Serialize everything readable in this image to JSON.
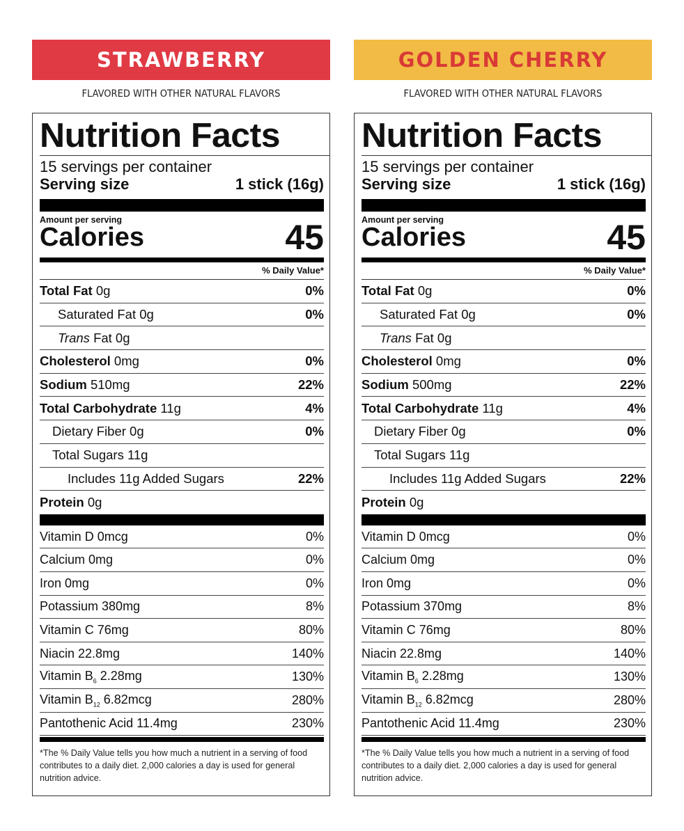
{
  "panels": [
    {
      "flavor": "STRAWBERRY",
      "banner_bg": "#e03a45",
      "banner_fg": "#ffffff",
      "subtitle": "FLAVORED WITH OTHER NATURAL FLAVORS",
      "title": "Nutrition Facts",
      "servings": "15 servings per container",
      "serving_size_label": "Serving size",
      "serving_size_value": "1 stick (16g)",
      "amount_per_serving": "Amount per serving",
      "calories_label": "Calories",
      "calories_value": "45",
      "dv_header": "% Daily Value*",
      "total_fat": {
        "label": "Total Fat",
        "amount": "0g",
        "dv": "0%"
      },
      "saturated_fat": {
        "label": "Saturated Fat 0g",
        "dv": "0%"
      },
      "trans_fat": {
        "label_italic": "Trans",
        "label_rest": "Fat 0g"
      },
      "cholesterol": {
        "label": "Cholesterol",
        "amount": "0mg",
        "dv": "0%"
      },
      "sodium": {
        "label": "Sodium",
        "amount": "510mg",
        "dv": "22%"
      },
      "total_carb": {
        "label": "Total Carbohydrate",
        "amount": "11g",
        "dv": "4%"
      },
      "dietary_fiber": {
        "label": "Dietary Fiber 0g",
        "dv": "0%"
      },
      "total_sugars": {
        "label": "Total Sugars 11g"
      },
      "added_sugars": {
        "label": "Includes 11g Added Sugars",
        "dv": "22%"
      },
      "protein": {
        "label": "Protein",
        "amount": "0g"
      },
      "vitamins": {
        "vit_d": {
          "label": "Vitamin D 0mcg",
          "dv": "0%"
        },
        "calcium": {
          "label": "Calcium 0mg",
          "dv": "0%"
        },
        "iron": {
          "label": "Iron 0mg",
          "dv": "0%"
        },
        "potassium": {
          "label": "Potassium 380mg",
          "dv": "8%"
        },
        "vit_c": {
          "label": "Vitamin C 76mg",
          "dv": "80%"
        },
        "niacin": {
          "label": "Niacin 22.8mg",
          "dv": "140%"
        },
        "vit_b6": {
          "prefix": "Vitamin B",
          "sub": "6",
          "amount": "2.28mg",
          "dv": "130%"
        },
        "vit_b12": {
          "prefix": "Vitamin B",
          "sub": "12",
          "amount": "6.82mcg",
          "dv": "280%"
        },
        "pantothenic": {
          "label": "Pantothenic Acid 11.4mg",
          "dv": "230%"
        }
      },
      "footnote": "*The % Daily Value tells you how much a nutrient in a serving of food contributes to a daily diet. 2,000 calories a day is used for general nutrition advice."
    },
    {
      "flavor": "GOLDEN CHERRY",
      "banner_bg": "#f2bb45",
      "banner_fg": "#d93a36",
      "subtitle": "FLAVORED WITH OTHER NATURAL FLAVORS",
      "title": "Nutrition Facts",
      "servings": "15 servings per container",
      "serving_size_label": "Serving size",
      "serving_size_value": "1 stick (16g)",
      "amount_per_serving": "Amount per serving",
      "calories_label": "Calories",
      "calories_value": "45",
      "dv_header": "% Daily Value*",
      "total_fat": {
        "label": "Total Fat",
        "amount": "0g",
        "dv": "0%"
      },
      "saturated_fat": {
        "label": "Saturated Fat 0g",
        "dv": "0%"
      },
      "trans_fat": {
        "label_italic": "Trans",
        "label_rest": "Fat 0g"
      },
      "cholesterol": {
        "label": "Cholesterol",
        "amount": "0mg",
        "dv": "0%"
      },
      "sodium": {
        "label": "Sodium",
        "amount": "500mg",
        "dv": "22%"
      },
      "total_carb": {
        "label": "Total Carbohydrate",
        "amount": "11g",
        "dv": "4%"
      },
      "dietary_fiber": {
        "label": "Dietary Fiber 0g",
        "dv": "0%"
      },
      "total_sugars": {
        "label": "Total Sugars 11g"
      },
      "added_sugars": {
        "label": "Includes 11g Added Sugars",
        "dv": "22%"
      },
      "protein": {
        "label": "Protein",
        "amount": "0g"
      },
      "vitamins": {
        "vit_d": {
          "label": "Vitamin D 0mcg",
          "dv": "0%"
        },
        "calcium": {
          "label": "Calcium 0mg",
          "dv": "0%"
        },
        "iron": {
          "label": "Iron 0mg",
          "dv": "0%"
        },
        "potassium": {
          "label": "Potassium 370mg",
          "dv": "8%"
        },
        "vit_c": {
          "label": "Vitamin C 76mg",
          "dv": "80%"
        },
        "niacin": {
          "label": "Niacin 22.8mg",
          "dv": "140%"
        },
        "vit_b6": {
          "prefix": "Vitamin B",
          "sub": "6",
          "amount": "2.28mg",
          "dv": "130%"
        },
        "vit_b12": {
          "prefix": "Vitamin B",
          "sub": "12",
          "amount": "6.82mcg",
          "dv": "280%"
        },
        "pantothenic": {
          "label": "Pantothenic Acid 11.4mg",
          "dv": "230%"
        }
      },
      "footnote": "*The % Daily Value tells you how much a nutrient in a serving of food contributes to a daily diet. 2,000 calories a day is used for general nutrition advice."
    }
  ]
}
